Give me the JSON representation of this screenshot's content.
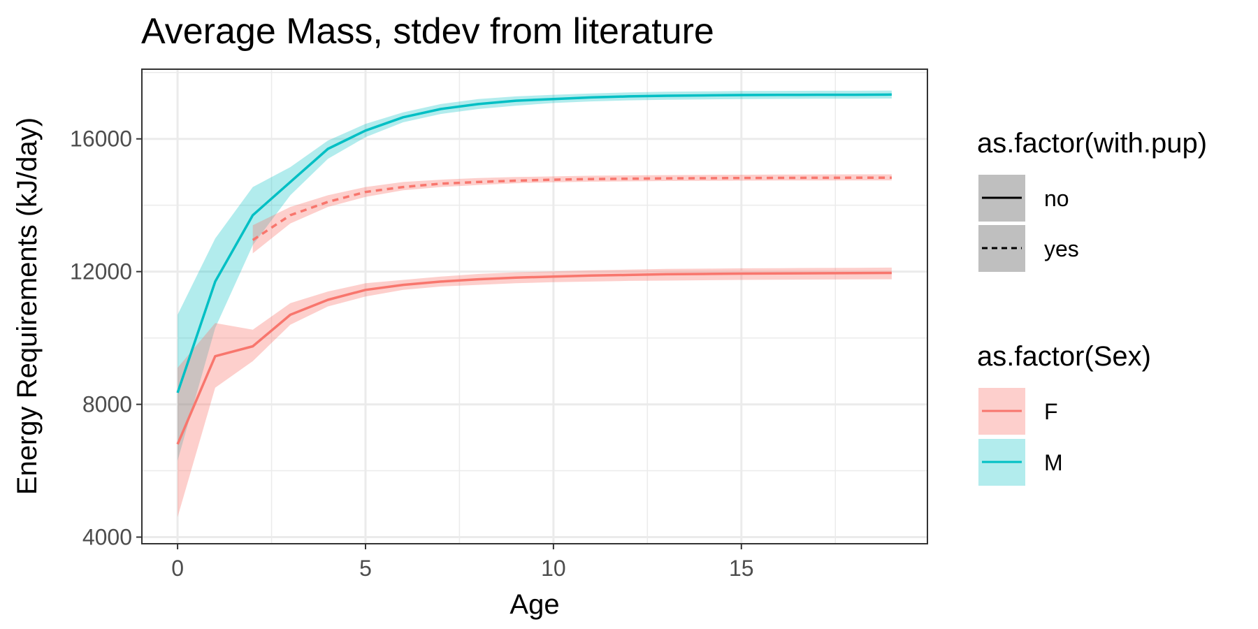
{
  "chart_data": {
    "type": "line",
    "title": "Average Mass, stdev from literature",
    "xlabel": "Age",
    "ylabel": "Energy Requirements (kJ/day)",
    "xlim": [
      -0.95,
      19.95
    ],
    "ylim": [
      3800,
      18100
    ],
    "x_ticks": [
      0,
      5,
      10,
      15
    ],
    "y_ticks": [
      4000,
      8000,
      12000,
      16000
    ],
    "x_tick_labels": [
      "0",
      "5",
      "10",
      "15"
    ],
    "y_tick_labels": [
      "4000",
      "8000",
      "12000",
      "16000"
    ],
    "grid": true,
    "legend_position": "right",
    "colors": {
      "F": "#F8766D",
      "M": "#00BFC4"
    },
    "series": [
      {
        "sex": "M",
        "with_pup": "no",
        "x": [
          0,
          1,
          2,
          3,
          4,
          5,
          6,
          7,
          8,
          9,
          10,
          11,
          12,
          13,
          14,
          15,
          16,
          17,
          18,
          19
        ],
        "y": [
          8350,
          11700,
          13700,
          14700,
          15700,
          16250,
          16650,
          16900,
          17050,
          17150,
          17200,
          17250,
          17280,
          17300,
          17310,
          17320,
          17325,
          17330,
          17330,
          17335
        ],
        "lower": [
          6300,
          10300,
          12800,
          14300,
          15400,
          16050,
          16500,
          16750,
          16900,
          17000,
          17080,
          17130,
          17160,
          17180,
          17190,
          17200,
          17205,
          17210,
          17210,
          17215
        ],
        "upper": [
          10700,
          13000,
          14550,
          15150,
          15950,
          16450,
          16800,
          17050,
          17200,
          17280,
          17330,
          17370,
          17400,
          17420,
          17430,
          17440,
          17445,
          17450,
          17450,
          17455
        ]
      },
      {
        "sex": "F",
        "with_pup": "no",
        "x": [
          0,
          1,
          2,
          3,
          4,
          5,
          6,
          7,
          8,
          9,
          10,
          11,
          12,
          13,
          14,
          15,
          16,
          17,
          18,
          19
        ],
        "y": [
          6800,
          9450,
          9750,
          10700,
          11150,
          11450,
          11600,
          11700,
          11770,
          11820,
          11850,
          11880,
          11900,
          11920,
          11930,
          11940,
          11945,
          11950,
          11955,
          11960
        ],
        "lower": [
          4600,
          8500,
          9300,
          10400,
          10950,
          11250,
          11450,
          11550,
          11600,
          11650,
          11680,
          11700,
          11720,
          11730,
          11740,
          11750,
          11755,
          11760,
          11765,
          11770
        ],
        "upper": [
          9100,
          10450,
          10250,
          11050,
          11400,
          11650,
          11750,
          11850,
          11930,
          11980,
          12010,
          12040,
          12060,
          12080,
          12090,
          12100,
          12105,
          12110,
          12115,
          12120
        ]
      },
      {
        "sex": "F",
        "with_pup": "yes",
        "x": [
          2,
          3,
          4,
          5,
          6,
          7,
          8,
          9,
          10,
          11,
          12,
          13,
          14,
          15,
          16,
          17,
          18,
          19
        ],
        "y": [
          12950,
          13700,
          14100,
          14400,
          14550,
          14650,
          14700,
          14740,
          14770,
          14790,
          14800,
          14810,
          14815,
          14820,
          14825,
          14828,
          14830,
          14830
        ],
        "lower": [
          12550,
          13450,
          13950,
          14250,
          14450,
          14550,
          14610,
          14660,
          14690,
          14710,
          14720,
          14730,
          14735,
          14740,
          14745,
          14748,
          14750,
          14750
        ],
        "upper": [
          13400,
          13950,
          14300,
          14550,
          14700,
          14770,
          14820,
          14850,
          14870,
          14890,
          14900,
          14910,
          14915,
          14920,
          14925,
          14928,
          14930,
          14930
        ]
      }
    ],
    "legends": [
      {
        "title": "as.factor(with.pup)",
        "items": [
          {
            "label": "no",
            "linetype": "solid"
          },
          {
            "label": "yes",
            "linetype": "dashed"
          }
        ]
      },
      {
        "title": "as.factor(Sex)",
        "items": [
          {
            "label": "F",
            "color": "#F8766D"
          },
          {
            "label": "M",
            "color": "#00BFC4"
          }
        ]
      }
    ]
  }
}
